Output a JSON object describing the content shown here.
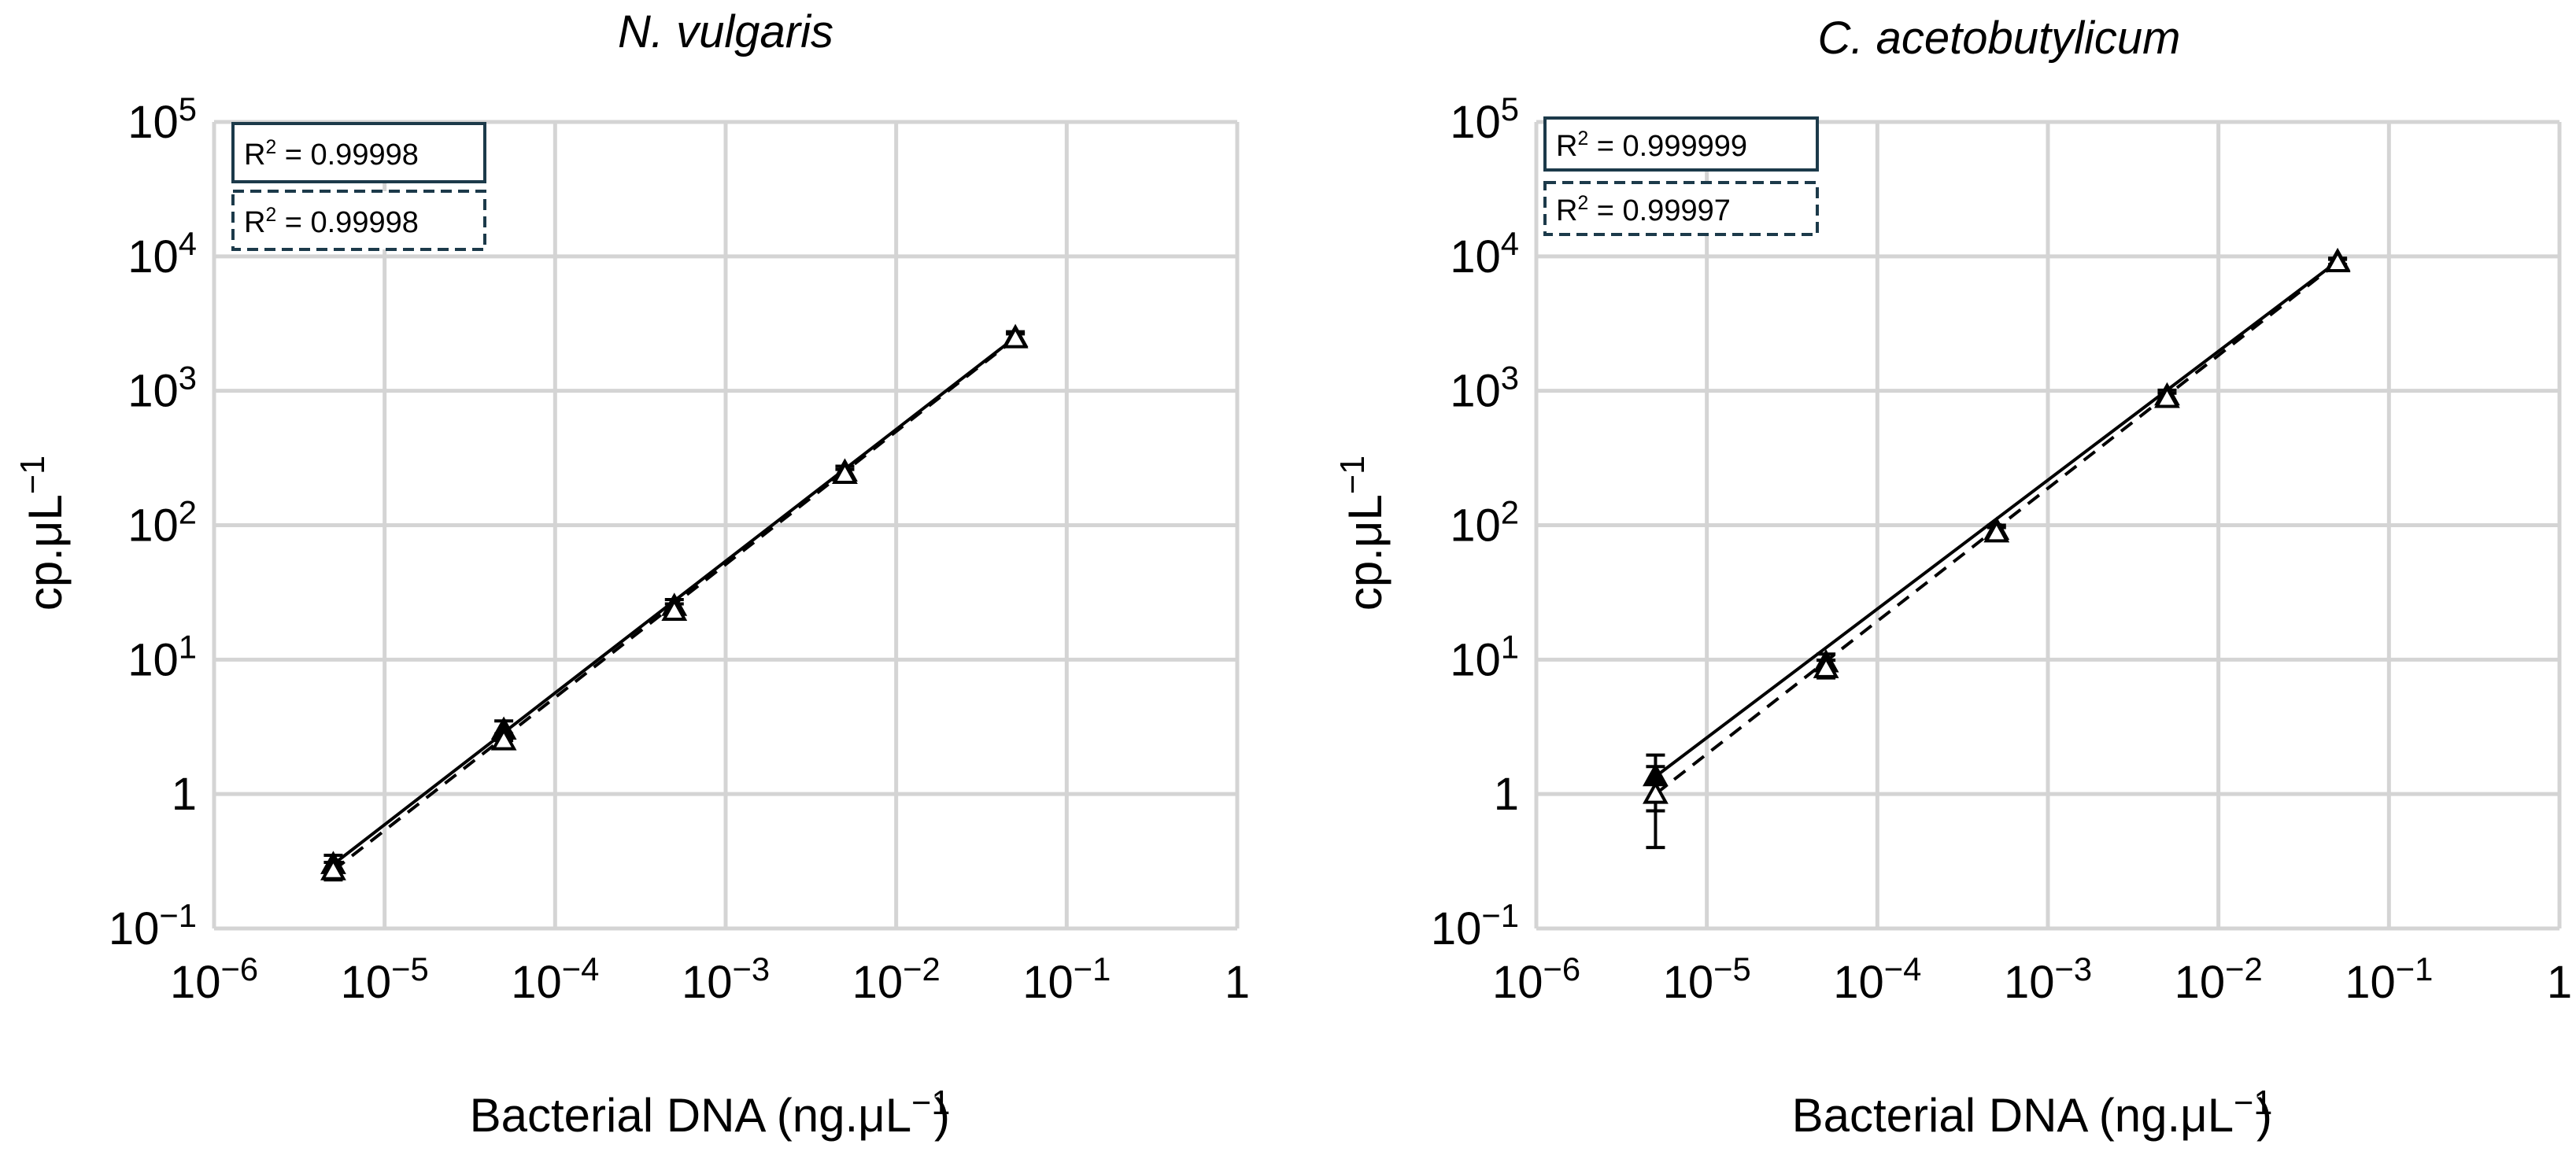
{
  "chart_data": [
    {
      "type": "scatter",
      "scale": "log-log",
      "title": "N. vulgaris",
      "xlabel": "Bacterial DNA (ng.μL",
      "xlabel_exp": "−1",
      "ylabel": "cp.μL",
      "ylabel_exp": "−1",
      "xlim": [
        1e-06,
        1
      ],
      "ylim": [
        0.1,
        100000
      ],
      "xticks": [
        {
          "base": "10",
          "exp": "−6"
        },
        {
          "base": "10",
          "exp": "−5"
        },
        {
          "base": "10",
          "exp": "−4"
        },
        {
          "base": "10",
          "exp": "−3"
        },
        {
          "base": "10",
          "exp": "−2"
        },
        {
          "base": "10",
          "exp": "−1"
        },
        {
          "base": "1",
          "exp": ""
        }
      ],
      "yticks": [
        {
          "base": "10",
          "exp": "−1"
        },
        {
          "base": "1",
          "exp": ""
        },
        {
          "base": "10",
          "exp": "1"
        },
        {
          "base": "10",
          "exp": "2"
        },
        {
          "base": "10",
          "exp": "3"
        },
        {
          "base": "10",
          "exp": "4"
        },
        {
          "base": "10",
          "exp": "5"
        }
      ],
      "grid": true,
      "legend": [
        {
          "label": "R",
          "sup": "2",
          "value": " = 0.99998",
          "style": "solid"
        },
        {
          "label": "R",
          "sup": "2",
          "value": " = 0.99998",
          "style": "dashed"
        }
      ],
      "series": [
        {
          "name": "solid",
          "marker": "filled-triangle",
          "line": "solid",
          "x": [
            5e-06,
            5e-05,
            0.0005,
            0.005,
            0.05
          ],
          "y": [
            0.3,
            3.0,
            25,
            250,
            2500
          ],
          "err": [
            0.05,
            0.5,
            3,
            25,
            250
          ]
        },
        {
          "name": "dashed",
          "marker": "open-triangle",
          "line": "dashed",
          "x": [
            5e-06,
            5e-05,
            0.0005,
            0.005,
            0.05
          ],
          "y": [
            0.27,
            2.5,
            23,
            240,
            2450
          ],
          "err": [
            0.04,
            0.3,
            3,
            20,
            200
          ]
        }
      ]
    },
    {
      "type": "scatter",
      "scale": "log-log",
      "title": "C. acetobutylicum",
      "xlabel": "Bacterial DNA (ng.μL",
      "xlabel_exp": "−1",
      "ylabel": "cp.μL",
      "ylabel_exp": "−1",
      "xlim": [
        1e-06,
        1
      ],
      "ylim": [
        0.1,
        100000
      ],
      "xticks": [
        {
          "base": "10",
          "exp": "−6"
        },
        {
          "base": "10",
          "exp": "−5"
        },
        {
          "base": "10",
          "exp": "−4"
        },
        {
          "base": "10",
          "exp": "−3"
        },
        {
          "base": "10",
          "exp": "−2"
        },
        {
          "base": "10",
          "exp": "−1"
        },
        {
          "base": "1",
          "exp": ""
        }
      ],
      "yticks": [
        {
          "base": "10",
          "exp": "−1"
        },
        {
          "base": "1",
          "exp": ""
        },
        {
          "base": "10",
          "exp": "1"
        },
        {
          "base": "10",
          "exp": "2"
        },
        {
          "base": "10",
          "exp": "3"
        },
        {
          "base": "10",
          "exp": "4"
        },
        {
          "base": "10",
          "exp": "5"
        }
      ],
      "grid": true,
      "legend": [
        {
          "label": "R",
          "sup": "2",
          "value": " = 0.999999",
          "style": "solid"
        },
        {
          "label": "R",
          "sup": "2",
          "value": " = 0.99997",
          "style": "dashed"
        }
      ],
      "series": [
        {
          "name": "solid",
          "marker": "filled-triangle",
          "line": "solid",
          "x": [
            5e-06,
            5e-05,
            0.0005,
            0.005,
            0.05
          ],
          "y": [
            1.35,
            9.5,
            92,
            920,
            9200
          ],
          "err": [
            0.6,
            1.5,
            8,
            90,
            500
          ]
        },
        {
          "name": "dashed",
          "marker": "open-triangle",
          "line": "dashed",
          "x": [
            5e-06,
            5e-05,
            0.0005,
            0.005,
            0.05
          ],
          "y": [
            1.0,
            8.6,
            88,
            880,
            9000
          ],
          "err": [
            0.6,
            1.3,
            8,
            80,
            500
          ]
        }
      ]
    }
  ]
}
